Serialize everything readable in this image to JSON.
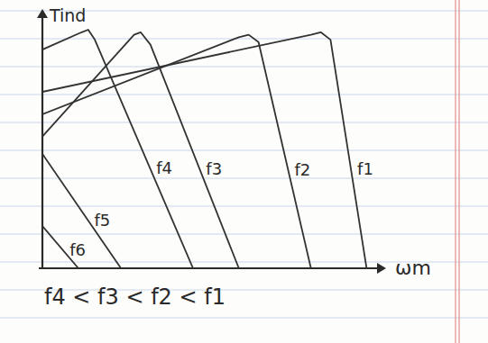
{
  "chart_data": {
    "type": "line",
    "ylabel": "Tind",
    "xlabel": "ωm",
    "annotation": "f4 < f3 < f2 < f1",
    "xlim": [
      0,
      100
    ],
    "ylim": [
      0,
      100
    ],
    "tick_labels": false,
    "grid": false,
    "series": [
      {
        "name": "f1",
        "color": "#333333",
        "x": [
          0,
          82,
          85,
          88,
          99
        ],
        "values": [
          71,
          94,
          95,
          92,
          0
        ]
      },
      {
        "name": "f2",
        "color": "#333333",
        "x": [
          0,
          60,
          63,
          66,
          82
        ],
        "values": [
          62,
          93,
          94,
          91,
          0
        ]
      },
      {
        "name": "f3",
        "color": "#333333",
        "x": [
          0,
          28,
          30,
          33,
          60
        ],
        "values": [
          53,
          94,
          95,
          90,
          0
        ]
      },
      {
        "name": "f4",
        "color": "#333333",
        "x": [
          0,
          12,
          14,
          16,
          46
        ],
        "values": [
          88,
          95,
          96,
          92,
          0
        ]
      },
      {
        "name": "f5",
        "color": "#333333",
        "x": [
          0,
          24
        ],
        "values": [
          46,
          0
        ]
      },
      {
        "name": "f6",
        "color": "#333333",
        "x": [
          0,
          11
        ],
        "values": [
          17,
          0
        ]
      }
    ]
  }
}
